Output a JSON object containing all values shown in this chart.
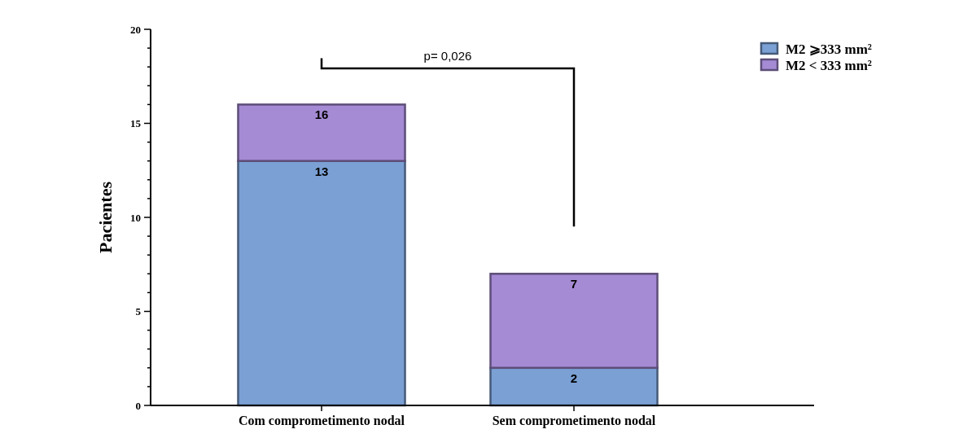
{
  "chart_data": {
    "type": "bar",
    "stacked": true,
    "ylabel": "Pacientes",
    "categories": [
      "Com comprometimento nodal",
      "Sem comprometimento nodal"
    ],
    "series": [
      {
        "name": "M2 ⩾333 mm²",
        "color": "#7ba0d4",
        "values": [
          13,
          2
        ],
        "value_labels": [
          "13",
          "2"
        ]
      },
      {
        "name": "M2 < 333 mm²",
        "color": "#a58ad4",
        "values": [
          3,
          5
        ]
      }
    ],
    "totals": [
      "16",
      "7"
    ],
    "ylim": [
      0,
      20
    ],
    "yticks": [
      0,
      {
        "value": 1,
        "label": null
      },
      {
        "value": 2,
        "label": null
      },
      {
        "value": 3,
        "label": null
      },
      {
        "value": 4,
        "label": null
      },
      5,
      {
        "value": 6,
        "label": null
      },
      {
        "value": 7,
        "label": null
      },
      {
        "value": 8,
        "label": null
      },
      {
        "value": 9,
        "label": null
      },
      10,
      {
        "value": 11,
        "label": null
      },
      {
        "value": 12,
        "label": null
      },
      {
        "value": 13,
        "label": null
      },
      {
        "value": 14,
        "label": null
      },
      15,
      {
        "value": 16,
        "label": null
      },
      {
        "value": 17,
        "label": null
      },
      {
        "value": 18,
        "label": null
      },
      {
        "value": 19,
        "label": null
      },
      20
    ],
    "grid": false,
    "legend": "top right",
    "annotations": [
      "p= 0,026"
    ]
  }
}
